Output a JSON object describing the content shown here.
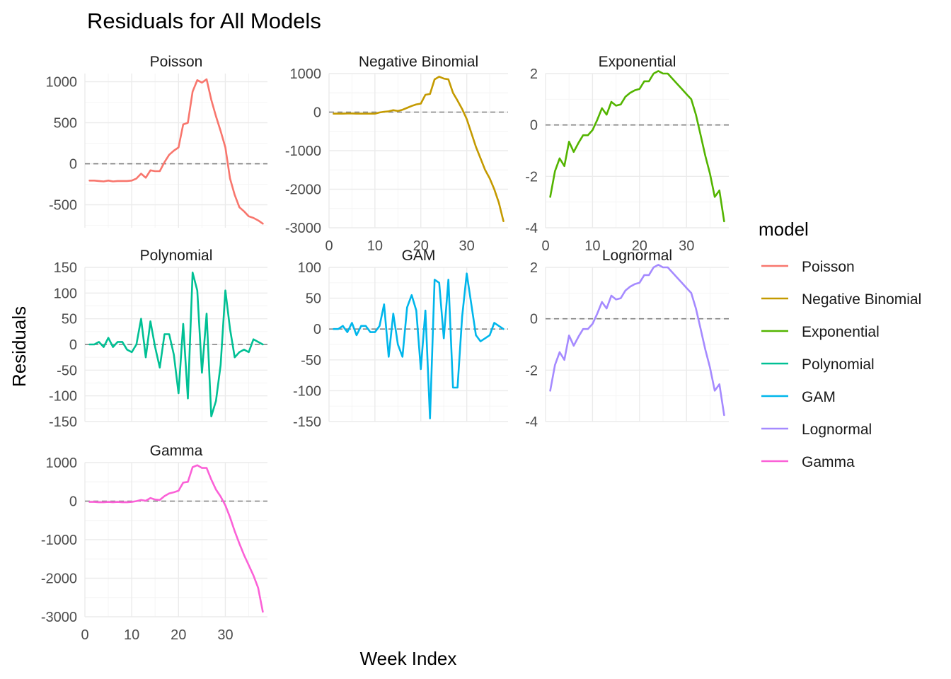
{
  "chart_data": {
    "type": "line",
    "title": "Residuals for All Models",
    "xlabel": "Week Index",
    "ylabel": "Residuals",
    "xlim": [
      0,
      39
    ],
    "x_ticks": [
      0,
      10,
      20,
      30
    ],
    "grid": true,
    "reference_line": {
      "y": 0,
      "style": "dashed"
    },
    "legend": {
      "title": "model",
      "placement": "right",
      "entries": [
        "Poisson",
        "Negative Binomial",
        "Exponential",
        "Polynomial",
        "GAM",
        "Lognormal",
        "Gamma"
      ]
    },
    "panels": [
      {
        "name": "Poisson",
        "color": "#F8766D",
        "ylim": [
          -780,
          1100
        ],
        "y_ticks": [
          -500,
          0,
          500,
          1000
        ],
        "tick_labels": [
          "-500",
          "0",
          "500",
          "1000"
        ],
        "x": [
          1,
          2,
          3,
          4,
          5,
          6,
          7,
          8,
          9,
          10,
          11,
          12,
          13,
          14,
          15,
          16,
          17,
          18,
          19,
          20,
          21,
          22,
          23,
          24,
          25,
          26,
          27,
          28,
          29,
          30,
          31,
          32,
          33,
          34,
          35,
          36,
          37,
          38
        ],
        "values": [
          -205,
          -205,
          -210,
          -215,
          -205,
          -215,
          -210,
          -210,
          -210,
          -205,
          -180,
          -120,
          -170,
          -80,
          -90,
          -90,
          20,
          110,
          160,
          200,
          480,
          500,
          880,
          1020,
          990,
          1030,
          780,
          580,
          400,
          200,
          -180,
          -380,
          -530,
          -580,
          -640,
          -660,
          -690,
          -730
        ]
      },
      {
        "name": "Negative Binomial",
        "color": "#C49A00",
        "ylim": [
          -3000,
          1000
        ],
        "y_ticks": [
          -3000,
          -2000,
          -1000,
          0,
          1000
        ],
        "tick_labels": [
          "-3000",
          "-2000",
          "-1000",
          "0",
          "1000"
        ],
        "x": [
          1,
          2,
          3,
          4,
          5,
          6,
          7,
          8,
          9,
          10,
          11,
          12,
          13,
          14,
          15,
          16,
          17,
          18,
          19,
          20,
          21,
          22,
          23,
          24,
          25,
          26,
          27,
          28,
          29,
          30,
          31,
          32,
          33,
          34,
          35,
          36,
          37,
          38
        ],
        "values": [
          -40,
          -40,
          -40,
          -35,
          -35,
          -40,
          -40,
          -40,
          -40,
          -40,
          -10,
          10,
          20,
          50,
          30,
          60,
          110,
          160,
          200,
          220,
          450,
          470,
          850,
          920,
          870,
          850,
          500,
          300,
          80,
          -180,
          -540,
          -900,
          -1200,
          -1500,
          -1720,
          -2000,
          -2350,
          -2830
        ]
      },
      {
        "name": "Exponential",
        "color": "#53B400",
        "ylim": [
          -4,
          2
        ],
        "y_ticks": [
          -4,
          -2,
          0,
          2
        ],
        "tick_labels": [
          "-4",
          "-2",
          "0",
          "2"
        ],
        "x": [
          1,
          2,
          3,
          4,
          5,
          6,
          7,
          8,
          9,
          10,
          11,
          12,
          13,
          14,
          15,
          16,
          17,
          18,
          19,
          20,
          21,
          22,
          23,
          24,
          25,
          26,
          27,
          28,
          29,
          30,
          31,
          32,
          33,
          34,
          35,
          36,
          37,
          38
        ],
        "values": [
          -2.8,
          -1.8,
          -1.3,
          -1.6,
          -0.65,
          -1.05,
          -0.7,
          -0.4,
          -0.4,
          -0.2,
          0.2,
          0.65,
          0.4,
          0.9,
          0.75,
          0.8,
          1.1,
          1.25,
          1.35,
          1.4,
          1.7,
          1.7,
          2.0,
          2.1,
          2.0,
          2.0,
          1.8,
          1.6,
          1.4,
          1.2,
          1.0,
          0.4,
          -0.4,
          -1.2,
          -1.9,
          -2.8,
          -2.55,
          -3.75
        ]
      },
      {
        "name": "Polynomial",
        "color": "#00C094",
        "ylim": [
          -150,
          150
        ],
        "y_ticks": [
          -150,
          -100,
          -50,
          0,
          50,
          100,
          150
        ],
        "tick_labels": [
          "-150",
          "-100",
          "-50",
          "0",
          "50",
          "100",
          "150"
        ],
        "x": [
          1,
          2,
          3,
          4,
          5,
          6,
          7,
          8,
          9,
          10,
          11,
          12,
          13,
          14,
          15,
          16,
          17,
          18,
          19,
          20,
          21,
          22,
          23,
          24,
          25,
          26,
          27,
          28,
          29,
          30,
          31,
          32,
          33,
          34,
          35,
          36,
          37,
          38
        ],
        "values": [
          0,
          0,
          5,
          -5,
          13,
          -5,
          5,
          5,
          -10,
          -15,
          0,
          50,
          -25,
          45,
          -5,
          -45,
          20,
          20,
          -20,
          -95,
          40,
          -105,
          140,
          105,
          -55,
          60,
          -140,
          -110,
          -40,
          105,
          30,
          -25,
          -15,
          -10,
          -15,
          10,
          5,
          0
        ]
      },
      {
        "name": "GAM",
        "color": "#00B6EB",
        "ylim": [
          -150,
          100
        ],
        "y_ticks": [
          -150,
          -100,
          -50,
          0,
          50,
          100
        ],
        "tick_labels": [
          "-150",
          "-100",
          "-50",
          "0",
          "50",
          "100"
        ],
        "x": [
          1,
          2,
          3,
          4,
          5,
          6,
          7,
          8,
          9,
          10,
          11,
          12,
          13,
          14,
          15,
          16,
          17,
          18,
          19,
          20,
          21,
          22,
          23,
          24,
          25,
          26,
          27,
          28,
          29,
          30,
          31,
          32,
          33,
          34,
          35,
          36,
          37,
          38
        ],
        "values": [
          0,
          0,
          5,
          -5,
          10,
          -10,
          5,
          5,
          -5,
          -5,
          5,
          40,
          -45,
          25,
          -25,
          -45,
          35,
          55,
          30,
          -65,
          30,
          -145,
          80,
          75,
          -15,
          80,
          -95,
          -95,
          20,
          90,
          40,
          -10,
          -20,
          -15,
          -10,
          10,
          5,
          0
        ]
      },
      {
        "name": "Lognormal",
        "color": "#A58AFF",
        "ylim": [
          -4,
          2
        ],
        "y_ticks": [
          -4,
          -2,
          0,
          2
        ],
        "tick_labels": [
          "-4",
          "-2",
          "0",
          "2"
        ],
        "x": [
          1,
          2,
          3,
          4,
          5,
          6,
          7,
          8,
          9,
          10,
          11,
          12,
          13,
          14,
          15,
          16,
          17,
          18,
          19,
          20,
          21,
          22,
          23,
          24,
          25,
          26,
          27,
          28,
          29,
          30,
          31,
          32,
          33,
          34,
          35,
          36,
          37,
          38
        ],
        "values": [
          -2.8,
          -1.8,
          -1.3,
          -1.6,
          -0.65,
          -1.05,
          -0.7,
          -0.4,
          -0.4,
          -0.2,
          0.2,
          0.65,
          0.4,
          0.9,
          0.75,
          0.8,
          1.1,
          1.25,
          1.35,
          1.4,
          1.7,
          1.7,
          2.0,
          2.1,
          2.0,
          2.0,
          1.8,
          1.6,
          1.4,
          1.2,
          1.0,
          0.4,
          -0.4,
          -1.2,
          -1.9,
          -2.8,
          -2.55,
          -3.75
        ]
      },
      {
        "name": "Gamma",
        "color": "#FB61D7",
        "ylim": [
          -3000,
          1000
        ],
        "y_ticks": [
          -3000,
          -2000,
          -1000,
          0,
          1000
        ],
        "tick_labels": [
          "-3000",
          "-2000",
          "-1000",
          "0",
          "1000"
        ],
        "x": [
          1,
          2,
          3,
          4,
          5,
          6,
          7,
          8,
          9,
          10,
          11,
          12,
          13,
          14,
          15,
          16,
          17,
          18,
          19,
          20,
          21,
          22,
          23,
          24,
          25,
          26,
          27,
          28,
          29,
          30,
          31,
          32,
          33,
          34,
          35,
          36,
          37,
          38
        ],
        "values": [
          -20,
          -20,
          -30,
          -30,
          -20,
          -30,
          -20,
          -30,
          -30,
          -20,
          0,
          30,
          10,
          80,
          40,
          30,
          130,
          200,
          230,
          270,
          480,
          500,
          880,
          930,
          860,
          860,
          560,
          300,
          120,
          -110,
          -420,
          -780,
          -1100,
          -1400,
          -1660,
          -1930,
          -2250,
          -2870
        ]
      }
    ]
  }
}
